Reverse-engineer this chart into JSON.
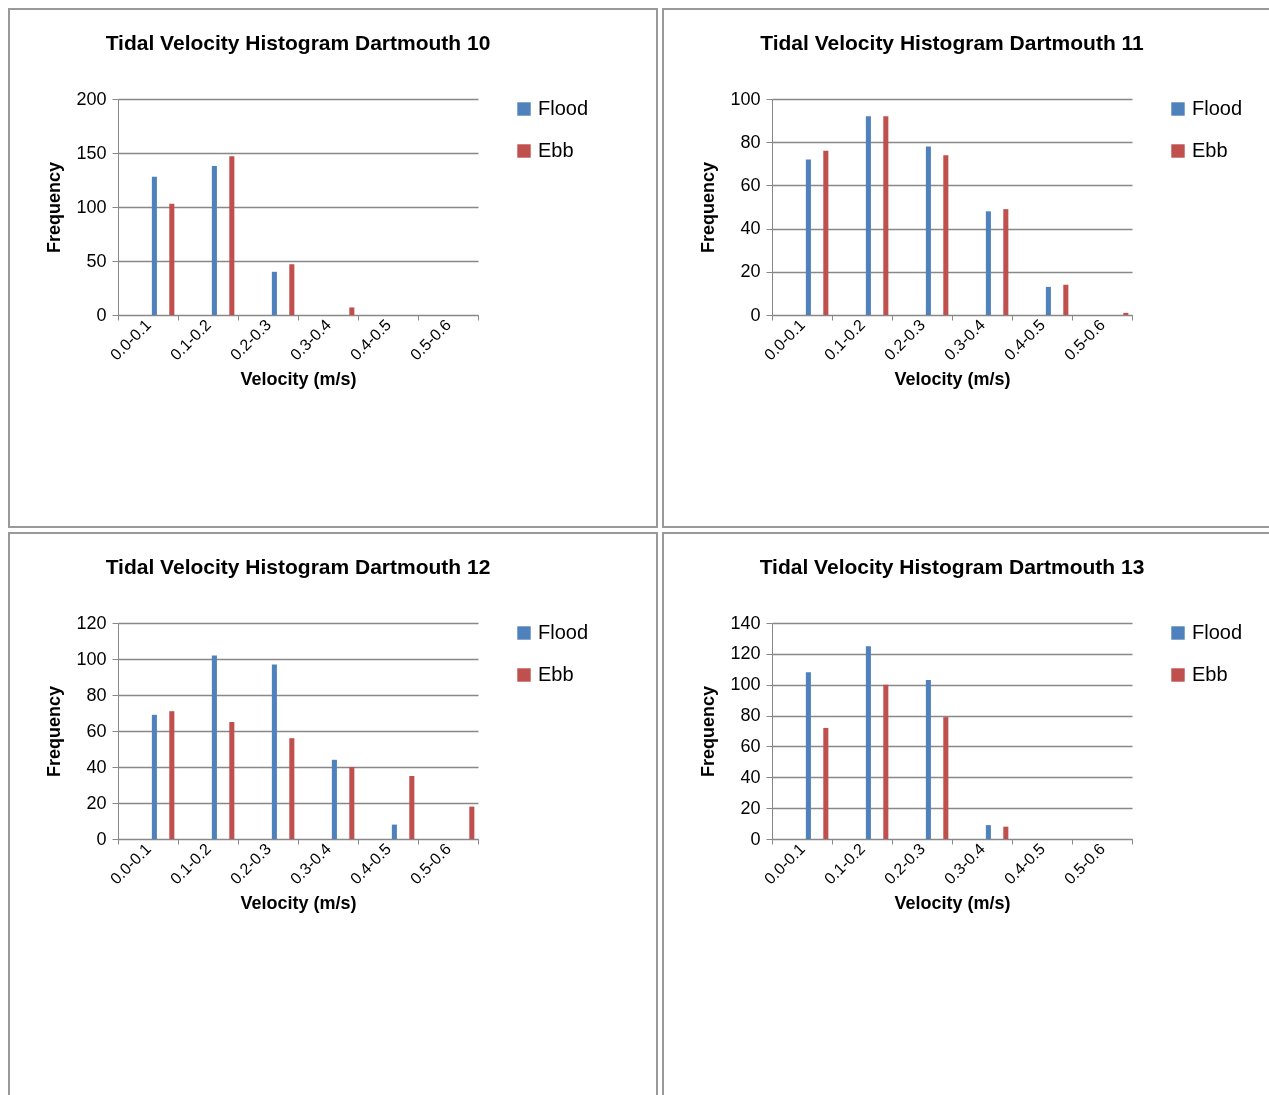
{
  "chart_data": [
    {
      "type": "bar",
      "title": "Tidal Velocity Histogram\nDartmouth 10",
      "xlabel": "Velocity (m/s)",
      "ylabel": "Frequency",
      "categories": [
        "0.0-0.1",
        "0.1-0.2",
        "0.2-0.3",
        "0.3-0.4",
        "0.4-0.5",
        "0.5-0.6"
      ],
      "series": [
        {
          "name": "Flood",
          "color": "#4f81bd",
          "values": [
            128,
            138,
            40,
            0,
            0,
            0
          ]
        },
        {
          "name": "Ebb",
          "color": "#c0504d",
          "values": [
            103,
            147,
            47,
            7,
            0,
            0
          ]
        }
      ],
      "ylim": [
        0,
        200
      ],
      "yticks": [
        0,
        50,
        100,
        150,
        200
      ],
      "grid": "y",
      "legend": "right"
    },
    {
      "type": "bar",
      "title": "Tidal Velocity Histogram\nDartmouth 11",
      "xlabel": "Velocity (m/s)",
      "ylabel": "Frequency",
      "categories": [
        "0.0-0.1",
        "0.1-0.2",
        "0.2-0.3",
        "0.3-0.4",
        "0.4-0.5",
        "0.5-0.6"
      ],
      "series": [
        {
          "name": "Flood",
          "color": "#4f81bd",
          "values": [
            72,
            92,
            78,
            48,
            13,
            0
          ]
        },
        {
          "name": "Ebb",
          "color": "#c0504d",
          "values": [
            76,
            92,
            74,
            49,
            14,
            1
          ]
        }
      ],
      "ylim": [
        0,
        100
      ],
      "yticks": [
        0,
        20,
        40,
        60,
        80,
        100
      ],
      "grid": "y",
      "legend": "right"
    },
    {
      "type": "bar",
      "title": "Tidal Velocity Histogram\nDartmouth 12",
      "xlabel": "Velocity (m/s)",
      "ylabel": "Frequency",
      "categories": [
        "0.0-0.1",
        "0.1-0.2",
        "0.2-0.3",
        "0.3-0.4",
        "0.4-0.5",
        "0.5-0.6"
      ],
      "series": [
        {
          "name": "Flood",
          "color": "#4f81bd",
          "values": [
            69,
            102,
            97,
            44,
            8,
            0
          ]
        },
        {
          "name": "Ebb",
          "color": "#c0504d",
          "values": [
            71,
            65,
            56,
            40,
            35,
            18
          ]
        }
      ],
      "ylim": [
        0,
        120
      ],
      "yticks": [
        0,
        20,
        40,
        60,
        80,
        100,
        120
      ],
      "grid": "y",
      "legend": "right"
    },
    {
      "type": "bar",
      "title": "Tidal Velocity Histogram\nDartmouth 13",
      "xlabel": "Velocity (m/s)",
      "ylabel": "Frequency",
      "categories": [
        "0.0-0.1",
        "0.1-0.2",
        "0.2-0.3",
        "0.3-0.4",
        "0.4-0.5",
        "0.5-0.6"
      ],
      "series": [
        {
          "name": "Flood",
          "color": "#4f81bd",
          "values": [
            108,
            125,
            103,
            9,
            0,
            0
          ]
        },
        {
          "name": "Ebb",
          "color": "#c0504d",
          "values": [
            72,
            100,
            79,
            8,
            0,
            0
          ]
        }
      ],
      "ylim": [
        0,
        140
      ],
      "yticks": [
        0,
        20,
        40,
        60,
        80,
        100,
        120,
        140
      ],
      "grid": "y",
      "legend": "right"
    }
  ]
}
